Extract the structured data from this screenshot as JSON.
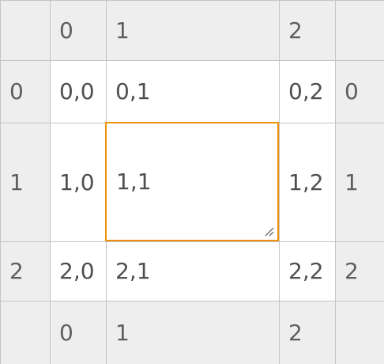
{
  "column_headers_top": [
    "",
    "0",
    "1",
    "2",
    ""
  ],
  "column_headers_bottom": [
    "",
    "0",
    "1",
    "2",
    ""
  ],
  "rows": [
    {
      "left": "0",
      "cells": [
        "0,0",
        "0,1",
        "0,2"
      ],
      "right": "0"
    },
    {
      "left": "1",
      "cells": [
        "1,0",
        "1,1",
        "1,2"
      ],
      "right": "1"
    },
    {
      "left": "2",
      "cells": [
        "2,0",
        "2,1",
        "2,2"
      ],
      "right": "2"
    }
  ],
  "selected_cell": "1,1",
  "colors": {
    "header_bg": "#eeeeee",
    "grid_line": "#c4c4c4",
    "selection": "#f0900a",
    "text": "#4f4f4f"
  }
}
